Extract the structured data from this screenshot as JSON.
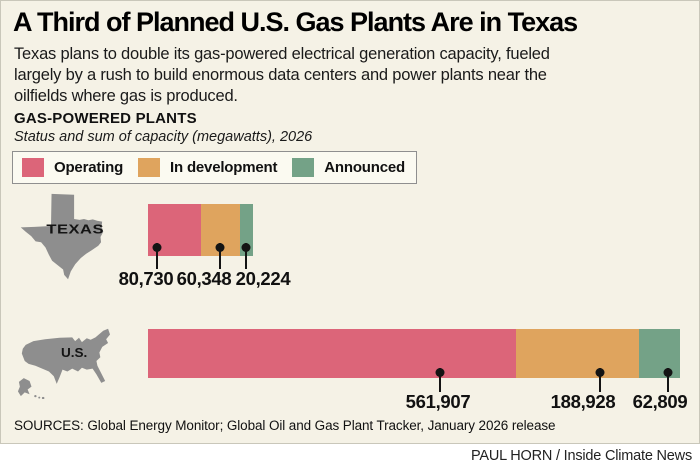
{
  "header": {
    "title": "A Third of Planned U.S. Gas Plants Are in Texas",
    "subtitle_lines": [
      "Texas plans to double its gas-powered electrical generation capacity, fueled",
      "largely by a rush to build enormous data centers and power plants near the",
      "oilfields where gas is produced."
    ]
  },
  "chart_header": {
    "label": "GAS-POWERED PLANTS",
    "sublabel": "Status and sum of capacity (megawatts), 2026"
  },
  "legend": {
    "items": [
      {
        "label": "Operating",
        "color": "#dc6579"
      },
      {
        "label": "In development",
        "color": "#dfa45e"
      },
      {
        "label": "Announced",
        "color": "#74a287"
      }
    ]
  },
  "chart_data": {
    "type": "bar",
    "orientation": "horizontal_stacked",
    "title": "GAS-POWERED PLANTS",
    "subtitle": "Status and sum of capacity (megawatts), 2026",
    "unit": "megawatts",
    "legend_position": "top",
    "categories": [
      "TEXAS",
      "U.S."
    ],
    "series": [
      {
        "name": "Operating",
        "color": "#dc6579",
        "values": [
          80730,
          561907
        ]
      },
      {
        "name": "In development",
        "color": "#dfa45e",
        "values": [
          60348,
          188928
        ]
      },
      {
        "name": "Announced",
        "color": "#74a287",
        "values": [
          20224,
          62809
        ]
      }
    ],
    "value_labels": [
      [
        "80,730",
        "60,348",
        "20,224"
      ],
      [
        "561,907",
        "188,928",
        "62,809"
      ]
    ]
  },
  "footer": {
    "sources": "SOURCES: Global Energy Monitor; Global Oil and Gas Plant Tracker, January 2026 release",
    "credit": "PAUL HORN / Inside Climate News"
  },
  "colors": {
    "background": "#f5f2e6",
    "map_gray": "#8e8e8e",
    "operating": "#dc6579",
    "in_development": "#dfa45e",
    "announced": "#74a287"
  }
}
